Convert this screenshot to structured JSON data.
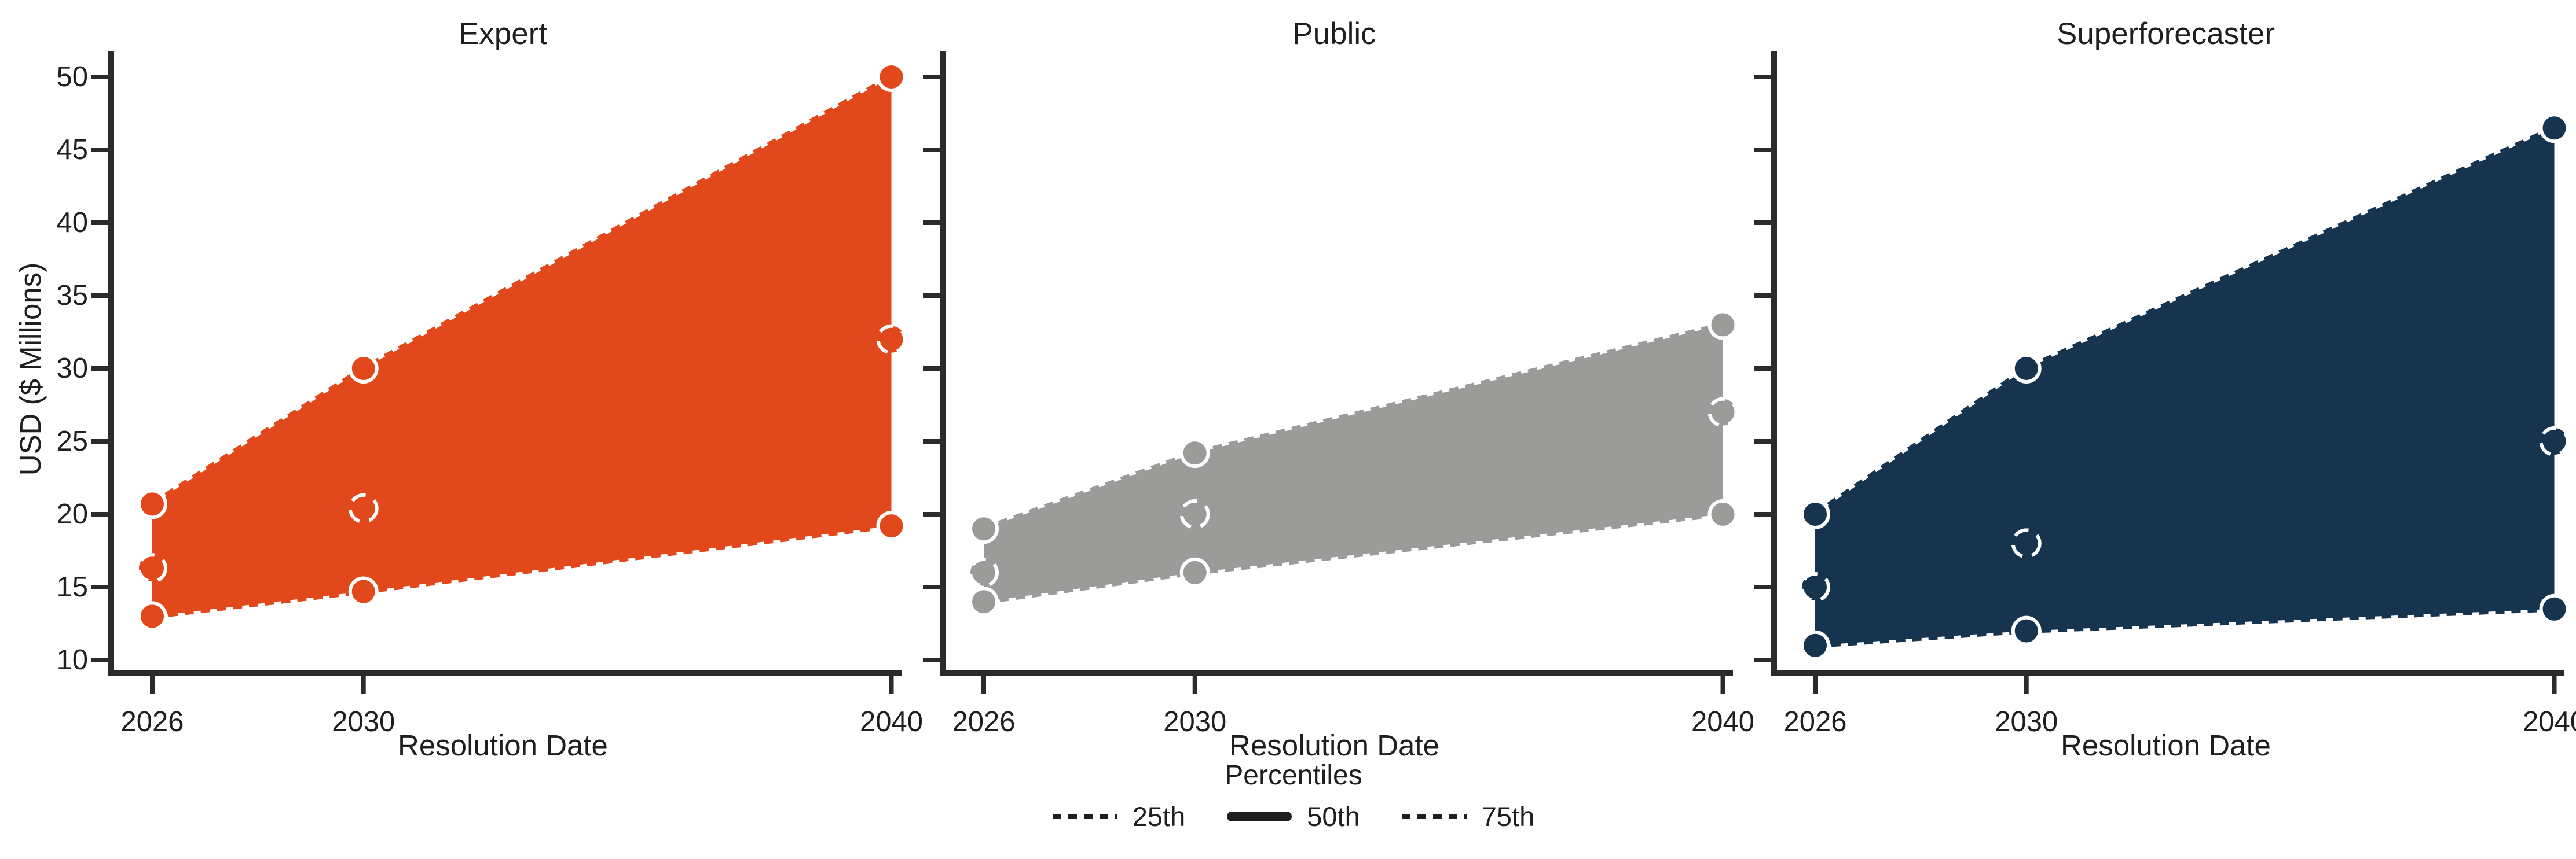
{
  "figure": {
    "background": "#ffffff",
    "text_color": "#1f1f1f",
    "axis_color": "#2b2b2b"
  },
  "legend": {
    "title": "Percentiles",
    "items": [
      {
        "label": "25th",
        "style": "dotted"
      },
      {
        "label": "50th",
        "style": "solid"
      },
      {
        "label": "75th",
        "style": "dotted"
      }
    ]
  },
  "chart_data": {
    "type": "area",
    "description": "Three-panel forecast chart; each panel shows a shaded band between 25th and 75th percentile forecasts with markers at each resolution date; 50th percentile shown as open (dash-ringed) markers inside the band.",
    "x": [
      2026,
      2030,
      2040
    ],
    "x_tick_labels": [
      "2026",
      "2030",
      "2040"
    ],
    "xlabel": "Resolution Date",
    "ylabel": "USD ($ Millions)",
    "y_ticks": [
      10,
      15,
      20,
      25,
      30,
      35,
      40,
      45,
      50
    ],
    "ylim": [
      10,
      50
    ],
    "grid": false,
    "legend_position": "bottom-center",
    "panels": [
      {
        "title": "Expert",
        "color": "#E1491C",
        "series": [
          {
            "name": "25th",
            "values": [
              13.0,
              14.7,
              19.2
            ]
          },
          {
            "name": "50th",
            "values": [
              16.3,
              20.4,
              32.0
            ]
          },
          {
            "name": "75th",
            "values": [
              20.7,
              30.0,
              50.0
            ]
          }
        ]
      },
      {
        "title": "Public",
        "color": "#9B9B99",
        "series": [
          {
            "name": "25th",
            "values": [
              14.0,
              16.0,
              20.0
            ]
          },
          {
            "name": "50th",
            "values": [
              16.0,
              20.0,
              27.0
            ]
          },
          {
            "name": "75th",
            "values": [
              19.0,
              24.2,
              33.0
            ]
          }
        ]
      },
      {
        "title": "Superforecaster",
        "color": "#16344E",
        "series": [
          {
            "name": "25th",
            "values": [
              11.0,
              12.0,
              13.5
            ]
          },
          {
            "name": "50th",
            "values": [
              15.0,
              18.0,
              25.0
            ]
          },
          {
            "name": "75th",
            "values": [
              20.0,
              30.0,
              46.5
            ]
          }
        ]
      }
    ]
  }
}
